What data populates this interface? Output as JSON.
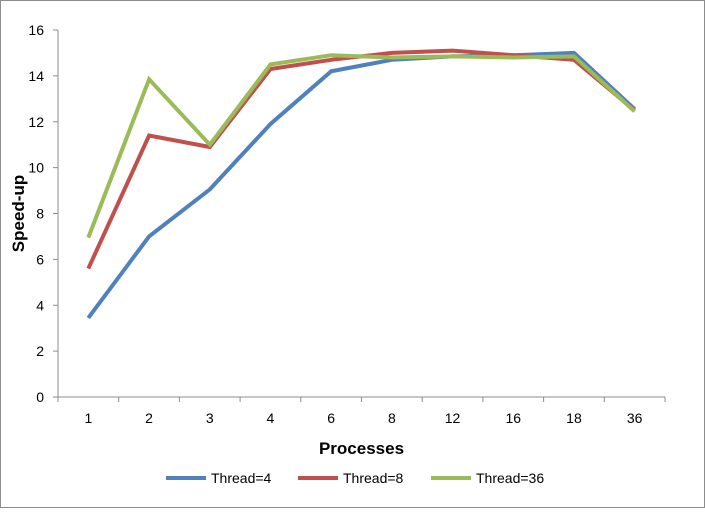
{
  "chart_data": {
    "type": "line",
    "title": "",
    "xlabel": "Processes",
    "ylabel": "Speed-up",
    "categories": [
      "1",
      "2",
      "3",
      "4",
      "6",
      "8",
      "12",
      "16",
      "18",
      "36"
    ],
    "ylim": [
      0,
      16
    ],
    "yticks": [
      0,
      2,
      4,
      6,
      8,
      10,
      12,
      14,
      16
    ],
    "grid": false,
    "legend_position": "bottom",
    "series": [
      {
        "name": "Thread=4",
        "color": "#4f81bd",
        "values": [
          3.45,
          7.0,
          9.05,
          11.9,
          14.2,
          14.7,
          14.85,
          14.9,
          15.0,
          12.55
        ]
      },
      {
        "name": "Thread=8",
        "color": "#c0504d",
        "values": [
          5.6,
          11.4,
          10.9,
          14.3,
          14.7,
          15.0,
          15.1,
          14.9,
          14.7,
          12.5
        ]
      },
      {
        "name": "Thread=36",
        "color": "#9bbb59",
        "values": [
          6.95,
          13.85,
          11.0,
          14.5,
          14.9,
          14.8,
          14.85,
          14.8,
          14.85,
          12.45
        ]
      }
    ]
  }
}
